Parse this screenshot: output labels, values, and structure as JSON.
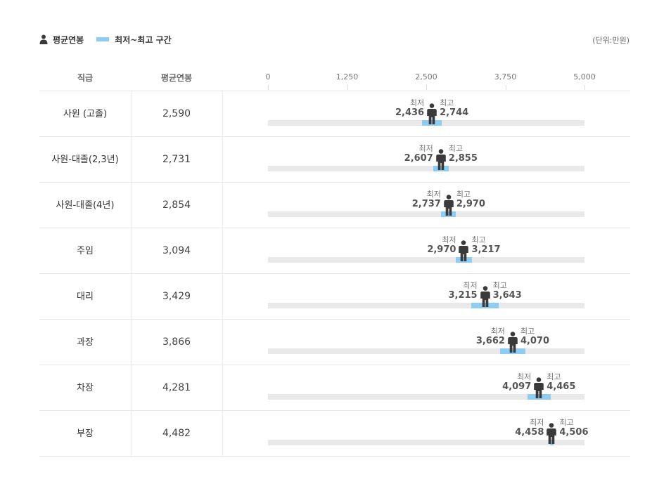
{
  "legend": {
    "average_label": "평균연봉",
    "range_label": "최저~최고 구간",
    "unit_label": "(단위:만원)",
    "person_icon": "person-icon",
    "range_color": "#8ecdf3"
  },
  "table": {
    "grade_header": "직급",
    "avg_header": "평균연봉"
  },
  "chart_data": {
    "type": "range-dot",
    "xlim": [
      0,
      5000
    ],
    "ticks": [
      "0",
      "1,250",
      "2,500",
      "3,750",
      "5,000"
    ],
    "tick_values": [
      0,
      1250,
      2500,
      3750,
      5000
    ],
    "min_caption": "최저",
    "max_caption": "최고",
    "unit": "만원",
    "rows": [
      {
        "grade": "사원 (고졸)",
        "avg": 2590,
        "avg_label": "2,590",
        "min": 2436,
        "min_label": "2,436",
        "max": 2744,
        "max_label": "2,744"
      },
      {
        "grade": "사원-대졸(2,3년)",
        "avg": 2731,
        "avg_label": "2,731",
        "min": 2607,
        "min_label": "2,607",
        "max": 2855,
        "max_label": "2,855"
      },
      {
        "grade": "사원-대졸(4년)",
        "avg": 2854,
        "avg_label": "2,854",
        "min": 2737,
        "min_label": "2,737",
        "max": 2970,
        "max_label": "2,970"
      },
      {
        "grade": "주임",
        "avg": 3094,
        "avg_label": "3,094",
        "min": 2970,
        "min_label": "2,970",
        "max": 3217,
        "max_label": "3,217"
      },
      {
        "grade": "대리",
        "avg": 3429,
        "avg_label": "3,429",
        "min": 3215,
        "min_label": "3,215",
        "max": 3643,
        "max_label": "3,643"
      },
      {
        "grade": "과장",
        "avg": 3866,
        "avg_label": "3,866",
        "min": 3662,
        "min_label": "3,662",
        "max": 4070,
        "max_label": "4,070"
      },
      {
        "grade": "차장",
        "avg": 4281,
        "avg_label": "4,281",
        "min": 4097,
        "min_label": "4,097",
        "max": 4465,
        "max_label": "4,465"
      },
      {
        "grade": "부장",
        "avg": 4482,
        "avg_label": "4,482",
        "min": 4458,
        "min_label": "4,458",
        "max": 4506,
        "max_label": "4,506"
      }
    ],
    "colors": {
      "range": "#8ecdf3",
      "track": "#e9e9e9",
      "figure": "#3a3a3a"
    }
  }
}
